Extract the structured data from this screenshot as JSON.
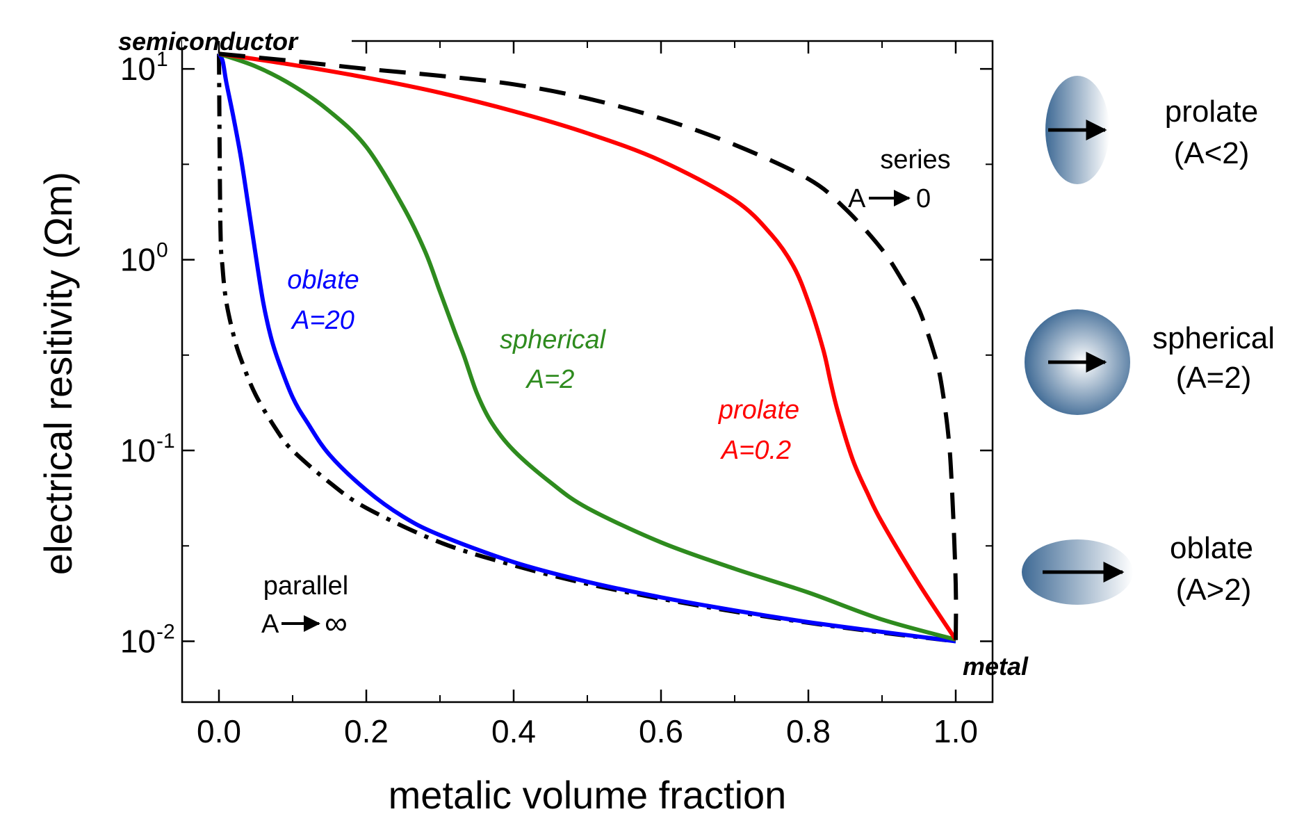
{
  "chart_data": {
    "type": "line",
    "title": "",
    "xlabel": "metalic volume fraction",
    "ylabel": "electrical resitivity (Ωm)",
    "yscale": "log",
    "xlim": [
      -0.05,
      1.05
    ],
    "ylim": [
      0.0048,
      14
    ],
    "x_ticks": [
      0.0,
      0.2,
      0.4,
      0.6,
      0.8,
      1.0
    ],
    "x_tick_labels": [
      "0.0",
      "0.2",
      "0.4",
      "0.6",
      "0.8",
      "1.0"
    ],
    "y_ticks": [
      10,
      1,
      0.1,
      0.01
    ],
    "y_tick_labels": [
      {
        "base": "10",
        "exp": "1"
      },
      {
        "base": "10",
        "exp": "0"
      },
      {
        "base": "10",
        "exp": "-1"
      },
      {
        "base": "10",
        "exp": "-2"
      }
    ],
    "series": [
      {
        "name": "parallel",
        "style": "dash-dot",
        "color": "#000000",
        "x": [
          0,
          0.002,
          0.005,
          0.01,
          0.02,
          0.03,
          0.05,
          0.08,
          0.1,
          0.15,
          0.2,
          0.3,
          0.4,
          0.5,
          0.6,
          0.7,
          0.8,
          0.9,
          1.0
        ],
        "values": [
          12,
          1.5,
          0.9,
          0.6,
          0.4,
          0.3,
          0.195,
          0.125,
          0.1,
          0.068,
          0.05,
          0.033,
          0.025,
          0.02,
          0.0167,
          0.0143,
          0.0125,
          0.0111,
          0.01
        ]
      },
      {
        "name": "oblate A=20",
        "style": "solid",
        "color": "#0000ff",
        "x": [
          0,
          0.005,
          0.01,
          0.02,
          0.03,
          0.04,
          0.05,
          0.06,
          0.07,
          0.08,
          0.1,
          0.12,
          0.15,
          0.2,
          0.25,
          0.3,
          0.4,
          0.5,
          0.6,
          0.7,
          0.8,
          0.9,
          1.0
        ],
        "values": [
          12,
          11,
          8.5,
          5.5,
          3.4,
          1.9,
          1.05,
          0.6,
          0.4,
          0.3,
          0.19,
          0.14,
          0.095,
          0.062,
          0.045,
          0.036,
          0.026,
          0.0205,
          0.017,
          0.0145,
          0.0126,
          0.0112,
          0.01
        ]
      },
      {
        "name": "spherical A=2",
        "style": "solid",
        "color": "#2e8b1e",
        "x": [
          0,
          0.05,
          0.1,
          0.15,
          0.2,
          0.25,
          0.28,
          0.3,
          0.32,
          0.333,
          0.35,
          0.37,
          0.4,
          0.45,
          0.5,
          0.6,
          0.7,
          0.8,
          0.9,
          1.0
        ],
        "values": [
          12,
          10.3,
          8.2,
          6.0,
          3.9,
          1.9,
          1.1,
          0.68,
          0.42,
          0.31,
          0.2,
          0.14,
          0.1,
          0.068,
          0.05,
          0.033,
          0.024,
          0.018,
          0.013,
          0.0102
        ]
      },
      {
        "name": "prolate A=0.2",
        "style": "solid",
        "color": "#ff0000",
        "x": [
          0,
          0.1,
          0.2,
          0.3,
          0.4,
          0.5,
          0.6,
          0.7,
          0.75,
          0.78,
          0.8,
          0.82,
          0.83,
          0.84,
          0.86,
          0.88,
          0.9,
          0.95,
          1.0
        ],
        "values": [
          12,
          10.5,
          9.0,
          7.5,
          6.0,
          4.6,
          3.3,
          2.05,
          1.35,
          0.92,
          0.6,
          0.34,
          0.23,
          0.16,
          0.09,
          0.06,
          0.042,
          0.02,
          0.0102
        ]
      },
      {
        "name": "series",
        "style": "dashed",
        "color": "#000000",
        "x": [
          0,
          0.1,
          0.2,
          0.3,
          0.4,
          0.5,
          0.6,
          0.7,
          0.8,
          0.85,
          0.9,
          0.93,
          0.95,
          0.97,
          0.98,
          0.99,
          0.995,
          1.0,
          1.0
        ],
        "values": [
          12,
          11,
          10,
          9.2,
          8.3,
          7.0,
          5.5,
          4.0,
          2.65,
          1.85,
          1.13,
          0.75,
          0.55,
          0.33,
          0.23,
          0.12,
          0.062,
          0.02,
          0.01
        ]
      }
    ],
    "annotations": [
      {
        "text": "semiconductor",
        "style": "bold-italic",
        "color": "#000000"
      },
      {
        "text": "metal",
        "style": "bold-italic",
        "color": "#000000"
      },
      {
        "line1": "oblate",
        "line2": "A=20",
        "style": "italic",
        "color": "#0000ff"
      },
      {
        "line1": "spherical",
        "line2": "A=2",
        "style": "italic",
        "color": "#2e8b1e"
      },
      {
        "line1": "prolate",
        "line2": "A=0.2",
        "style": "italic",
        "color": "#ff0000"
      },
      {
        "line1": "series",
        "line2": "A",
        "line2_suffix": "0",
        "color": "#000000"
      },
      {
        "line1": "parallel",
        "line2": "A",
        "line2_suffix": "∞",
        "color": "#000000"
      }
    ]
  },
  "shape_legend": [
    {
      "icon": "prolate-ellipsoid-icon",
      "line1": "prolate",
      "line2": "(A<2)"
    },
    {
      "icon": "sphere-icon",
      "line1": "spherical",
      "line2": "(A=2)"
    },
    {
      "icon": "oblate-ellipsoid-icon",
      "line1": "oblate",
      "line2": "(A>2)"
    }
  ],
  "colors": {
    "axis": "#000000",
    "shape_dark": "#3f6a95",
    "shape_light": "#ffffff"
  }
}
